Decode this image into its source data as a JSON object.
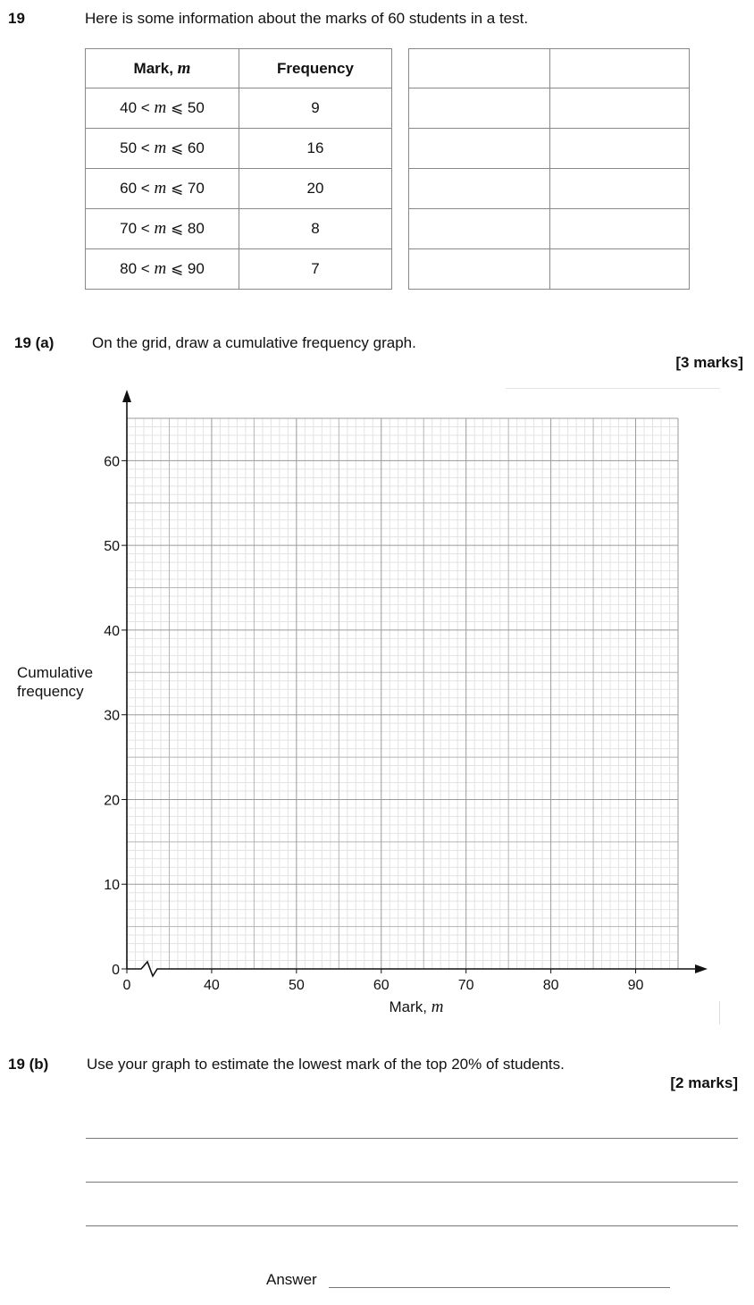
{
  "question": {
    "number": "19",
    "intro": "Here is some information about the marks of 60 students in a test."
  },
  "table": {
    "header_mark": "Mark, ",
    "header_mark_var": "m",
    "header_freq": "Frequency",
    "rows": [
      {
        "lower": "40",
        "upper": "50",
        "freq": "9"
      },
      {
        "lower": "50",
        "upper": "60",
        "freq": "16"
      },
      {
        "lower": "60",
        "upper": "70",
        "freq": "20"
      },
      {
        "lower": "70",
        "upper": "80",
        "freq": "8"
      },
      {
        "lower": "80",
        "upper": "90",
        "freq": "7"
      }
    ],
    "lt": "<",
    "le": "⩽",
    "var": "m"
  },
  "part_a": {
    "label": "19  (a)",
    "text": "On the grid, draw a cumulative frequency graph.",
    "marks": "[3 marks]"
  },
  "part_b": {
    "label": "19  (b)",
    "text": "Use your graph to estimate the lowest mark of the top 20% of students.",
    "marks": "[2 marks]",
    "answer_label": "Answer"
  },
  "chart_data": {
    "type": "line",
    "title": "",
    "xlabel": "Mark, ",
    "xlabel_var": "m",
    "ylabel_line1": "Cumulative",
    "ylabel_line2": "frequency",
    "x_ticks": [
      0,
      40,
      50,
      60,
      70,
      80,
      90
    ],
    "y_ticks": [
      0,
      10,
      20,
      30,
      40,
      50,
      60
    ],
    "xlim": [
      30,
      95
    ],
    "ylim": [
      0,
      65
    ],
    "x_axis_break": true,
    "grid": true,
    "series": []
  }
}
